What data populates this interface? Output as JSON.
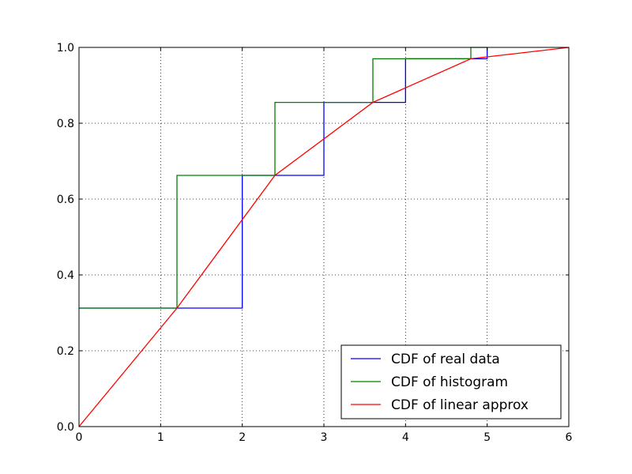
{
  "chart_data": {
    "type": "line",
    "title": "",
    "xlabel": "",
    "ylabel": "",
    "xlim": [
      0,
      6
    ],
    "ylim": [
      0.0,
      1.0
    ],
    "grid": true,
    "legend_position": "lower-right",
    "x_ticks": [
      0,
      1,
      2,
      3,
      4,
      5,
      6
    ],
    "x_tick_labels": [
      "0",
      "1",
      "2",
      "3",
      "4",
      "5",
      "6"
    ],
    "y_ticks": [
      0.0,
      0.2,
      0.4,
      0.6,
      0.8,
      1.0
    ],
    "y_tick_labels": [
      "0.0",
      "0.2",
      "0.4",
      "0.6",
      "0.8",
      "1.0"
    ],
    "series": [
      {
        "name": "CDF of real data",
        "color": "#0000ff",
        "x": [
          0,
          2,
          2,
          3,
          3,
          4,
          4,
          5,
          5
        ],
        "y": [
          0.3125,
          0.3125,
          0.6625,
          0.6625,
          0.855,
          0.855,
          0.97,
          0.97,
          1.0
        ]
      },
      {
        "name": "CDF of histogram",
        "color": "#008000",
        "x": [
          0,
          1.2,
          1.2,
          2.4,
          2.4,
          3.6,
          3.6,
          4.8,
          4.8,
          5.0
        ],
        "y": [
          0.3125,
          0.3125,
          0.6625,
          0.6625,
          0.855,
          0.855,
          0.97,
          0.97,
          1.0,
          1.0
        ]
      },
      {
        "name": "CDF of linear approx",
        "color": "#ff0000",
        "x": [
          0,
          1.2,
          2.4,
          3.6,
          4.8,
          6.0
        ],
        "y": [
          0.0,
          0.3125,
          0.6625,
          0.855,
          0.97,
          1.0
        ]
      }
    ]
  }
}
